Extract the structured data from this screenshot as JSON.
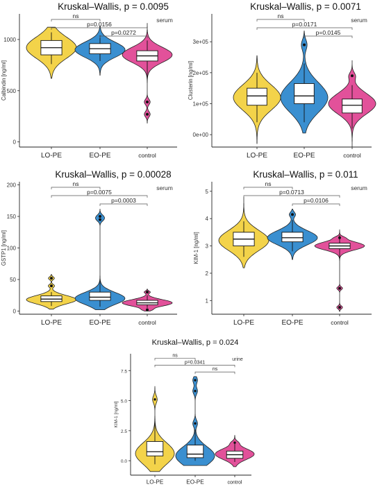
{
  "colors": {
    "LO-PE": "#f3d34a",
    "EO-PE": "#3a8fd0",
    "control": "#e2519a"
  },
  "chart_data": [
    {
      "type": "violin",
      "title": "Kruskal–Wallis, p = 0.0095",
      "ylabel": "Calbindin [ng/ml]",
      "sample": "serum",
      "categories": [
        "LO-PE",
        "EO-PE",
        "control"
      ],
      "yticks": [
        "0",
        "500",
        "1000"
      ],
      "ylim": [
        -50,
        1250
      ],
      "comparisons": [
        {
          "pair": [
            "LO-PE",
            "EO-PE"
          ],
          "label": "ns"
        },
        {
          "pair": [
            "LO-PE",
            "control"
          ],
          "label": "p=0.0156"
        },
        {
          "pair": [
            "EO-PE",
            "control"
          ],
          "label": "p=0.0272"
        }
      ],
      "boxes": [
        {
          "q1": 850,
          "median": 920,
          "q3": 990,
          "wlow": 760,
          "whigh": 1070,
          "min": 620,
          "max": 1120,
          "mode": 920,
          "outliers": []
        },
        {
          "q1": 860,
          "median": 910,
          "q3": 960,
          "wlow": 790,
          "whigh": 1040,
          "min": 650,
          "max": 1130,
          "mode": 900,
          "outliers": []
        },
        {
          "q1": 790,
          "median": 840,
          "q3": 890,
          "wlow": 600,
          "whigh": 990,
          "min": 180,
          "max": 1160,
          "mode": 850,
          "outliers": [
            390,
            270
          ]
        }
      ]
    },
    {
      "type": "violin",
      "title": "Kruskal–Wallis, p = 0.0071",
      "ylabel": "Clusterin [ng/ml]",
      "sample": "serum",
      "categories": [
        "LO-PE",
        "EO-PE",
        "control"
      ],
      "yticks": [
        "0e+00",
        "1e+05",
        "2e+05",
        "3e+05"
      ],
      "ylim": [
        -40000,
        390000
      ],
      "comparisons": [
        {
          "pair": [
            "LO-PE",
            "EO-PE"
          ],
          "label": "ns"
        },
        {
          "pair": [
            "LO-PE",
            "control"
          ],
          "label": "p=0.0171"
        },
        {
          "pair": [
            "EO-PE",
            "control"
          ],
          "label": "p=0.0145"
        }
      ],
      "boxes": [
        {
          "q1": 95000,
          "median": 125000,
          "q3": 150000,
          "wlow": 40000,
          "whigh": 200000,
          "min": -30000,
          "max": 255000,
          "mode": 120000,
          "outliers": []
        },
        {
          "q1": 100000,
          "median": 125000,
          "q3": 165000,
          "wlow": 40000,
          "whigh": 230000,
          "min": 5000,
          "max": 335000,
          "mode": 120000,
          "outliers": [
            290000
          ]
        },
        {
          "q1": 70000,
          "median": 95000,
          "q3": 115000,
          "wlow": 20000,
          "whigh": 160000,
          "min": -40000,
          "max": 240000,
          "mode": 100000,
          "outliers": [
            190000
          ]
        }
      ]
    },
    {
      "type": "violin",
      "title": "Kruskal–Wallis, p = 0.00028",
      "ylabel": "GSTP1 [ng/ml]",
      "sample": "serum",
      "categories": [
        "LO-PE",
        "EO-PE",
        "control"
      ],
      "yticks": [
        "0",
        "50",
        "100",
        "150",
        "200"
      ],
      "ylim": [
        -5,
        205
      ],
      "comparisons": [
        {
          "pair": [
            "LO-PE",
            "EO-PE"
          ],
          "label": "ns"
        },
        {
          "pair": [
            "LO-PE",
            "control"
          ],
          "label": "p=0.0075"
        },
        {
          "pair": [
            "EO-PE",
            "control"
          ],
          "label": "p=0.0003"
        }
      ],
      "boxes": [
        {
          "q1": 15,
          "median": 19,
          "q3": 24,
          "wlow": 8,
          "whigh": 30,
          "min": 3,
          "max": 58,
          "mode": 18,
          "outliers": [
            40,
            52
          ]
        },
        {
          "q1": 17,
          "median": 22,
          "q3": 30,
          "wlow": 7,
          "whigh": 48,
          "min": 2,
          "max": 162,
          "mode": 20,
          "outliers": [
            145,
            150
          ]
        },
        {
          "q1": 10,
          "median": 13,
          "q3": 17,
          "wlow": 5,
          "whigh": 25,
          "min": 0,
          "max": 35,
          "mode": 13,
          "outliers": [
            30,
            2
          ]
        }
      ]
    },
    {
      "type": "violin",
      "title": "Kruskal–Wallis, p = 0.011",
      "ylabel": "KIM-1 [ng/ml]",
      "sample": "serum",
      "categories": [
        "LO-PE",
        "EO-PE",
        "control"
      ],
      "yticks": [
        "1",
        "2",
        "3",
        "4",
        "5"
      ],
      "ylim": [
        0.5,
        5.35
      ],
      "comparisons": [
        {
          "pair": [
            "LO-PE",
            "EO-PE"
          ],
          "label": "ns"
        },
        {
          "pair": [
            "LO-PE",
            "control"
          ],
          "label": "p=0.0713"
        },
        {
          "pair": [
            "EO-PE",
            "control"
          ],
          "label": "p=0.0106"
        }
      ],
      "boxes": [
        {
          "q1": 3.0,
          "median": 3.25,
          "q3": 3.5,
          "wlow": 2.6,
          "whigh": 3.9,
          "min": 2.2,
          "max": 4.8,
          "mode": 3.2,
          "outliers": []
        },
        {
          "q1": 3.15,
          "median": 3.3,
          "q3": 3.5,
          "wlow": 2.8,
          "whigh": 3.95,
          "min": 2.5,
          "max": 4.35,
          "mode": 3.3,
          "outliers": [
            4.15
          ]
        },
        {
          "q1": 2.9,
          "median": 3.0,
          "q3": 3.1,
          "wlow": 2.55,
          "whigh": 3.4,
          "min": 0.6,
          "max": 3.6,
          "mode": 3.0,
          "outliers": [
            1.45,
            0.75,
            3.3
          ]
        }
      ]
    },
    {
      "type": "violin",
      "title": "Kruskal–Wallis, p = 0.024",
      "ylabel": "KIM-1 [ng/ml]",
      "sample": "urine",
      "categories": [
        "LO-PE",
        "EO-PE",
        "control"
      ],
      "yticks": [
        "0.0",
        "2.5",
        "5.0",
        "7.5"
      ],
      "ylim": [
        -1.2,
        8.9
      ],
      "comparisons": [
        {
          "pair": [
            "LO-PE",
            "EO-PE"
          ],
          "label": "ns"
        },
        {
          "pair": [
            "LO-PE",
            "control"
          ],
          "label": "p=0.0341"
        },
        {
          "pair": [
            "EO-PE",
            "control"
          ],
          "label": "ns"
        }
      ],
      "boxes": [
        {
          "q1": 0.4,
          "median": 0.75,
          "q3": 1.6,
          "wlow": -0.3,
          "whigh": 3.2,
          "min": -0.9,
          "max": 6.2,
          "mode": 0.6,
          "outliers": [
            5.1
          ]
        },
        {
          "q1": 0.25,
          "median": 0.55,
          "q3": 1.3,
          "wlow": 0.0,
          "whigh": 2.6,
          "min": -0.4,
          "max": 7.0,
          "mode": 0.4,
          "outliers": [
            3.1,
            5.8,
            6.7
          ]
        },
        {
          "q1": 0.2,
          "median": 0.5,
          "q3": 0.8,
          "wlow": -0.1,
          "whigh": 1.4,
          "min": -0.5,
          "max": 2.1,
          "mode": 0.55,
          "outliers": [
            1.5
          ]
        }
      ]
    }
  ]
}
